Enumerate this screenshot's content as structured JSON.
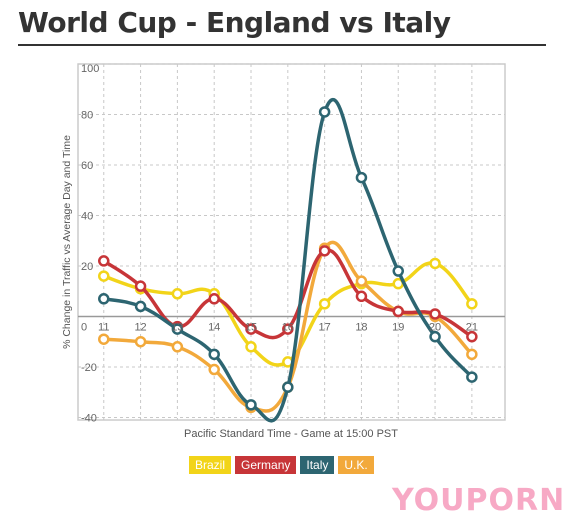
{
  "title": "World Cup - England vs Italy",
  "chart_data": {
    "type": "line",
    "x": [
      11,
      12,
      13,
      14,
      15,
      16,
      17,
      18,
      19,
      20,
      21
    ],
    "x_tick_labels": [
      "11",
      "12",
      "13",
      "14",
      "15",
      "16",
      "17",
      "18",
      "19",
      "20",
      "21"
    ],
    "x_origin_label": "0",
    "y_ticks": [
      100,
      80,
      60,
      40,
      20,
      0,
      -20,
      -40
    ],
    "y_tick_labels": [
      "100",
      "80",
      "60",
      "40",
      "20",
      "",
      "-20",
      "-40"
    ],
    "xlim": [
      10.3,
      21.9
    ],
    "ylim": [
      -41,
      100
    ],
    "xlabel": "Pacific Standard Time - Game at 15:00 PST",
    "ylabel": "% Change in Traffic vs Average Day and Time",
    "grid": true,
    "legend_position": "bottom-center",
    "series": [
      {
        "name": "Brazil",
        "color": "#f2d419",
        "values": [
          16,
          11,
          9,
          9,
          -12,
          -18,
          5,
          13,
          13,
          21,
          5
        ]
      },
      {
        "name": "Germany",
        "color": "#c73538",
        "values": [
          22,
          12,
          -4,
          7,
          -5,
          -5,
          26,
          8,
          2,
          1,
          -8
        ]
      },
      {
        "name": "Italy",
        "color": "#2d6571",
        "values": [
          7,
          4,
          -5,
          -15,
          -35,
          -28,
          81,
          55,
          18,
          -8,
          -24
        ]
      },
      {
        "name": "U.K.",
        "color": "#f2a93b",
        "values": [
          -9,
          -10,
          -12,
          -21,
          -36,
          -28,
          27,
          14,
          2,
          0,
          -15
        ]
      }
    ]
  },
  "logo": {
    "part1": "YOU",
    "part2": "PORN"
  }
}
